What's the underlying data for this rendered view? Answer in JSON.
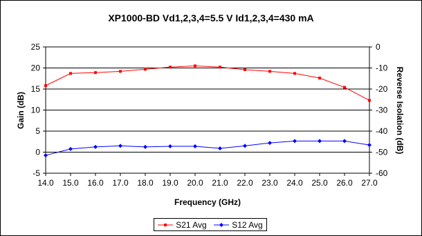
{
  "chart_data": {
    "type": "line",
    "title": "XP1000-BD Vd1,2,3,4=5.5 V Id1,2,3,4=430 mA",
    "xlabel": "Frequency (GHz)",
    "ylabel": "Gain (dB)",
    "y2label": "Reverse Isolation (dB)",
    "x": [
      14.0,
      15.0,
      16.0,
      17.0,
      18.0,
      19.0,
      20.0,
      21.0,
      22.0,
      23.0,
      24.0,
      25.0,
      26.0,
      27.0
    ],
    "x_tick_labels": [
      "14.0",
      "15.0",
      "16.0",
      "17.0",
      "18.0",
      "19.0",
      "20.0",
      "21.0",
      "22.0",
      "23.0",
      "24.0",
      "25.0",
      "26.0",
      "27.0"
    ],
    "xlim": [
      14.0,
      27.0
    ],
    "ylim": [
      -5,
      25
    ],
    "y_ticks": [
      -5,
      0,
      5,
      10,
      15,
      20,
      25
    ],
    "y2lim": [
      -60,
      0
    ],
    "y2_ticks": [
      -60,
      -50,
      -40,
      -30,
      -20,
      -10,
      0
    ],
    "grid": true,
    "legend_position": "bottom",
    "series": [
      {
        "name": "S21 Avg",
        "axis": "left",
        "color": "#ff0000",
        "marker": "square",
        "values": [
          15.8,
          18.7,
          18.9,
          19.2,
          19.7,
          20.2,
          20.5,
          20.2,
          19.6,
          19.2,
          18.7,
          17.6,
          15.4,
          12.3
        ]
      },
      {
        "name": "S12 Avg",
        "axis": "right",
        "color": "#0000ff",
        "marker": "diamond",
        "values": [
          -51.5,
          -48.5,
          -47.5,
          -47.0,
          -47.5,
          -47.2,
          -47.2,
          -48.2,
          -47.0,
          -45.6,
          -44.7,
          -44.7,
          -44.7,
          -46.6
        ]
      }
    ]
  }
}
